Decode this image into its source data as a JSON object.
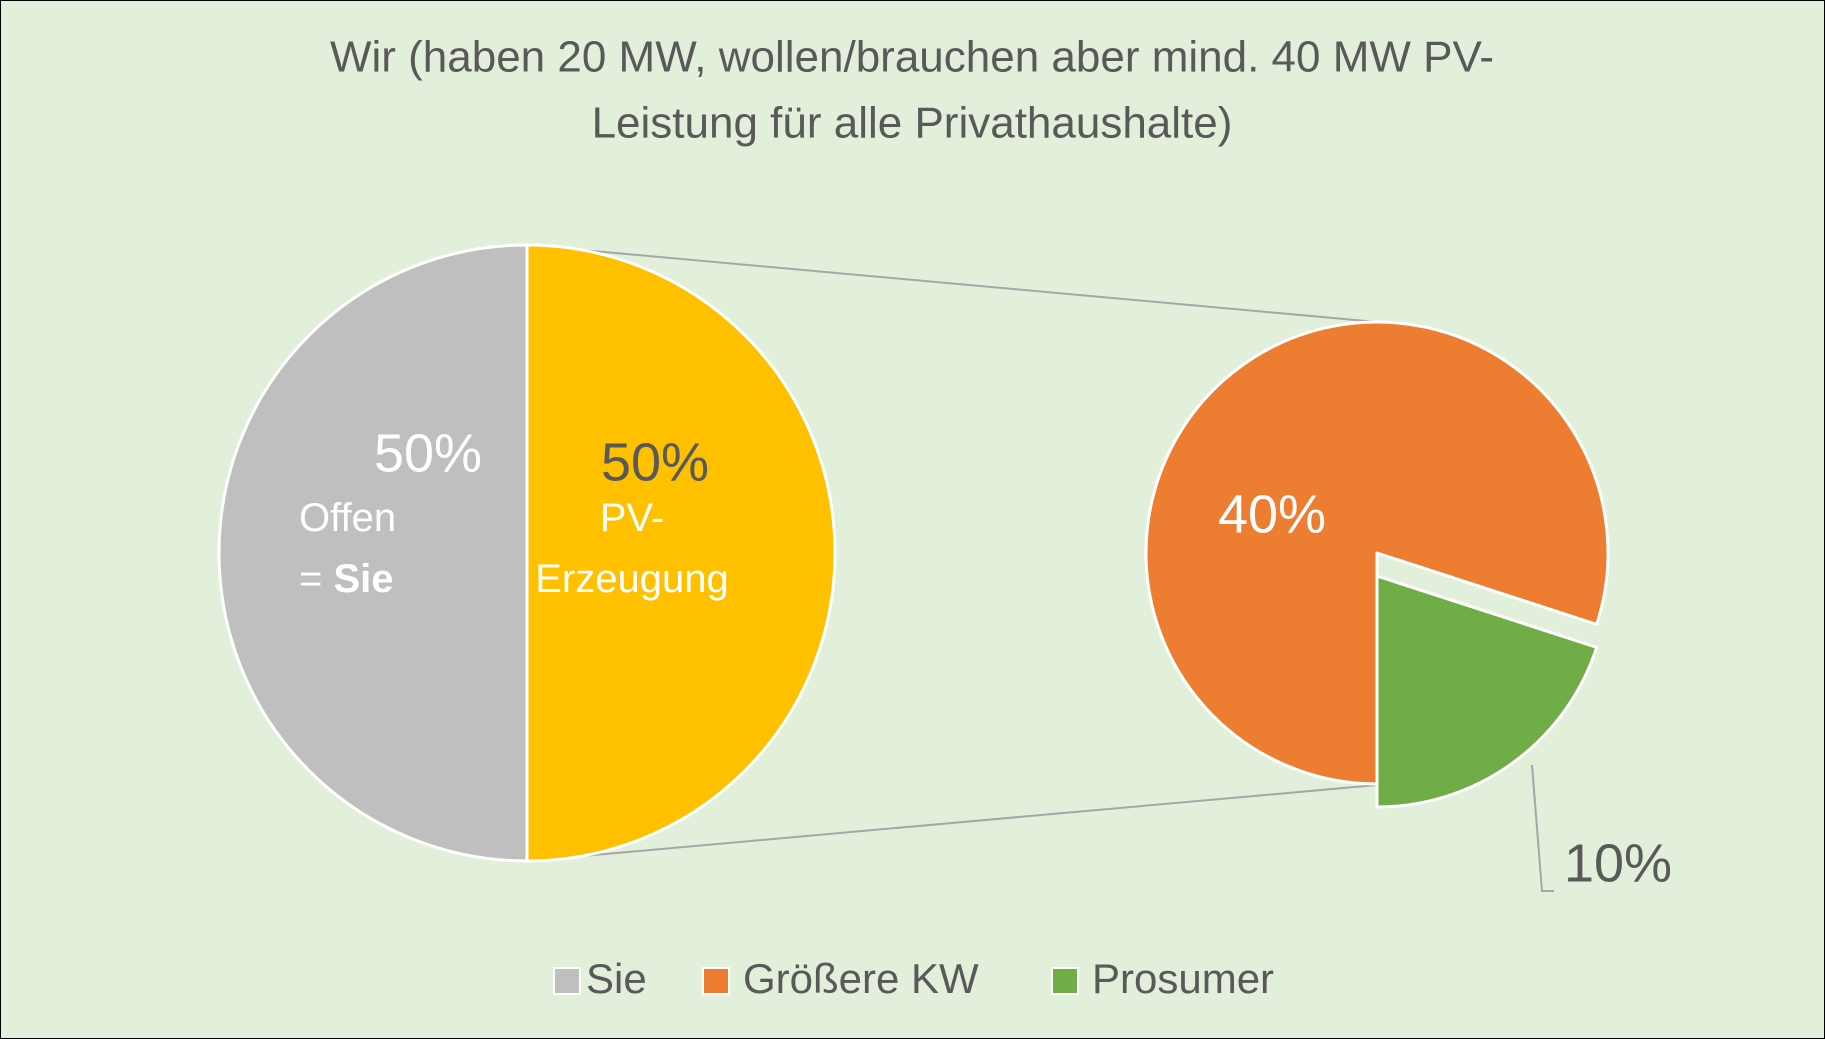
{
  "chart_data": {
    "type": "pie_of_pie",
    "title": [
      "Wir (haben 20 MW, wollen/brauchen aber mind. 40 MW PV-",
      "Leistung für alle Privathaushalte)"
    ],
    "main": {
      "categories": [
        "Sie",
        null
      ],
      "values": [
        50,
        50
      ],
      "value_labels": [
        "50%",
        "50%"
      ],
      "colors": [
        "#bfbfbf",
        "#ffc000"
      ],
      "notes": [
        [
          [
            "Offen"
          ],
          [
            "= ",
            "Sie"
          ]
        ],
        [
          [
            "PV-"
          ],
          [
            "Erzeugung"
          ]
        ]
      ]
    },
    "secondary": {
      "categories": [
        "Größere KW",
        "Prosumer"
      ],
      "values": [
        40,
        10
      ],
      "value_labels": [
        "40%",
        "10%"
      ],
      "colors": [
        "#ed7d31",
        "#70ad47"
      ]
    }
  }
}
